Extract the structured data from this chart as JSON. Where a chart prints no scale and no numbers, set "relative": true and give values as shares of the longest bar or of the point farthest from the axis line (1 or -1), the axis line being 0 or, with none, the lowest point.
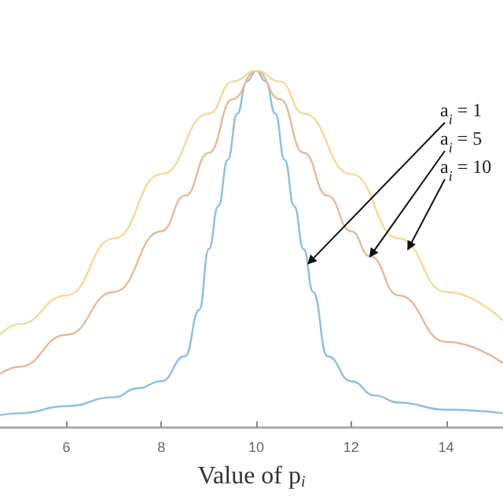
{
  "chart_data": {
    "type": "line",
    "relative": true,
    "xlabel": "Value of p$_{i}$",
    "xlim": [
      4.6,
      15.2
    ],
    "xticks": [
      6,
      8,
      10,
      12,
      14
    ],
    "grid": false,
    "marker": "none",
    "line_style": "solid",
    "series": [
      {
        "color": "#8fbde0",
        "x": [
          4.6,
          5,
          6,
          7,
          7.5,
          8,
          8.5,
          8.8,
          9,
          9.2,
          9.4,
          9.6,
          9.8,
          10,
          10.2,
          10.4,
          10.6,
          10.8,
          11,
          11.2,
          11.5,
          12,
          12.5,
          13,
          14,
          15.2
        ],
        "values": [
          0.035,
          0.04,
          0.06,
          0.085,
          0.11,
          0.13,
          0.2,
          0.33,
          0.5,
          0.62,
          0.75,
          0.88,
          0.97,
          1,
          0.97,
          0.88,
          0.75,
          0.62,
          0.5,
          0.38,
          0.2,
          0.13,
          0.09,
          0.07,
          0.05,
          0.04
        ]
      },
      {
        "color": "#e6b899",
        "x": [
          4.6,
          5,
          6,
          7,
          8,
          8.5,
          9,
          9.5,
          10,
          10.5,
          11,
          11.5,
          12,
          12.4,
          13,
          14,
          15.2
        ],
        "values": [
          0.15,
          0.17,
          0.26,
          0.38,
          0.55,
          0.65,
          0.77,
          0.92,
          1,
          0.92,
          0.77,
          0.65,
          0.55,
          0.48,
          0.37,
          0.24,
          0.18
        ]
      },
      {
        "color": "#f3d99a",
        "x": [
          4.6,
          5,
          6,
          7,
          8,
          9,
          9.5,
          10,
          10.5,
          11,
          12,
          13,
          14,
          15.2
        ],
        "values": [
          0.26,
          0.29,
          0.37,
          0.53,
          0.71,
          0.88,
          0.97,
          1,
          0.97,
          0.88,
          0.71,
          0.53,
          0.38,
          0.3
        ]
      }
    ],
    "annotations": [
      {
        "text": "a$_{i}$ = 1",
        "x": 11.1,
        "y": 0.46
      },
      {
        "text": "a$_{i}$ = 5",
        "x": 12.4,
        "y": 0.48
      },
      {
        "text": "a$_{i}$ = 10",
        "x": 13.2,
        "y": 0.5
      }
    ]
  }
}
